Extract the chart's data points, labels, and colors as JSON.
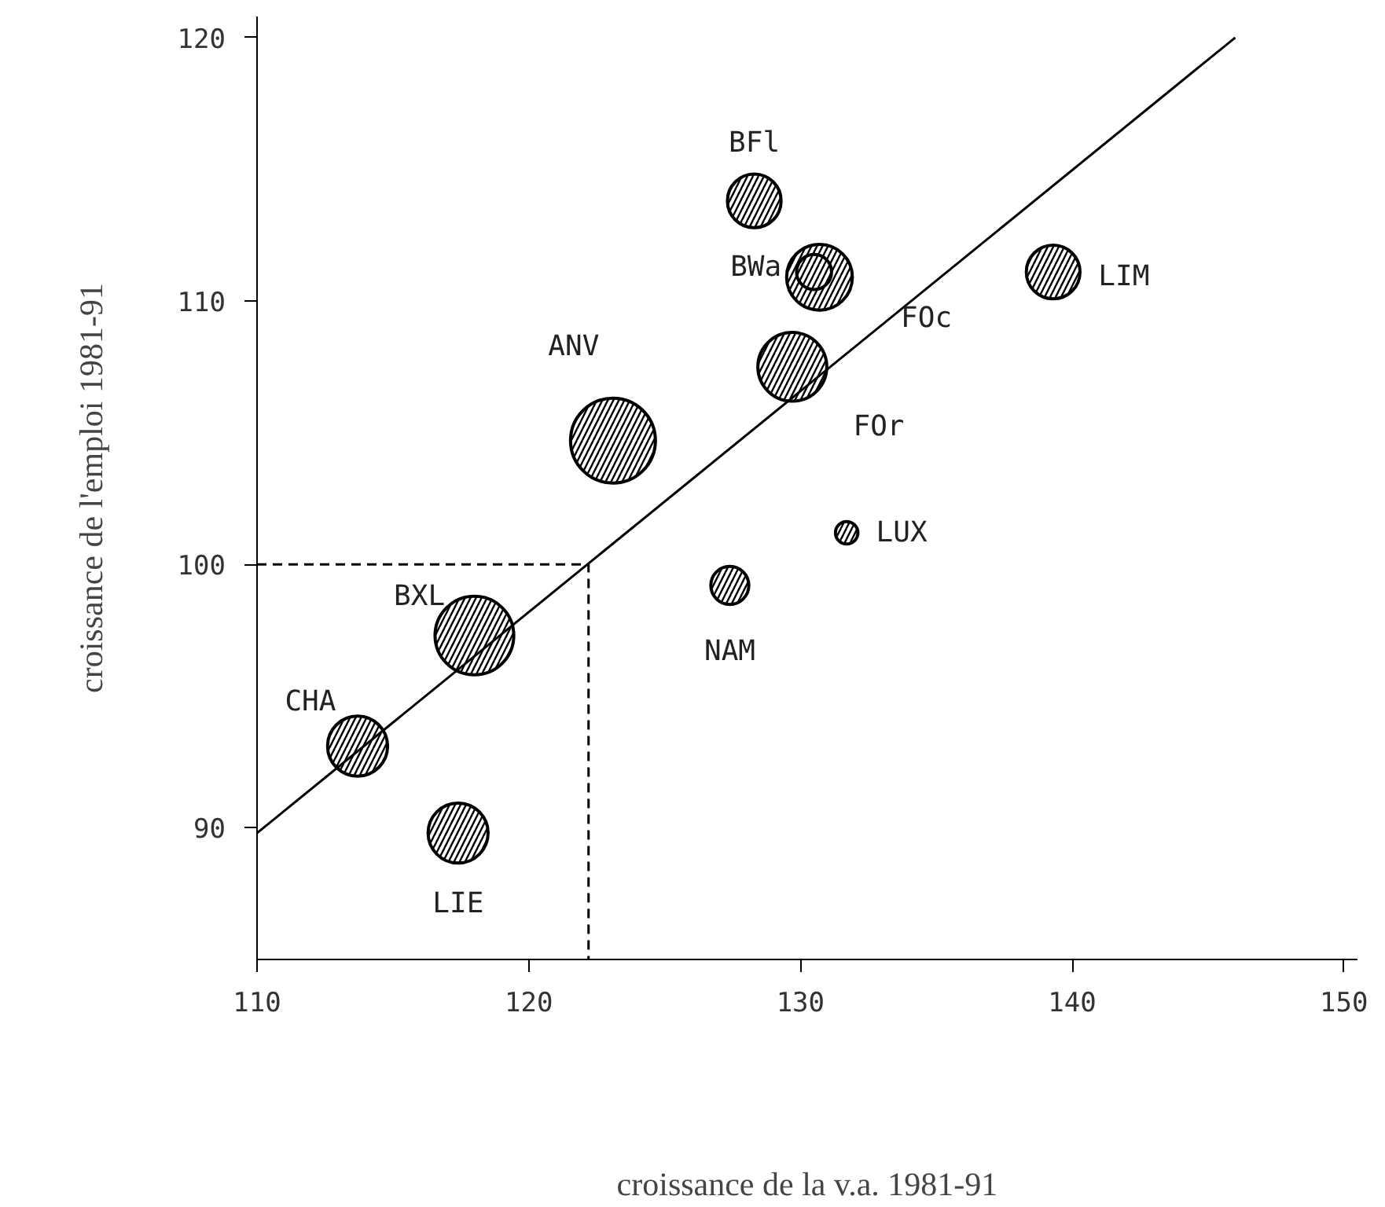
{
  "chart_data": {
    "type": "bubble",
    "xlabel": "croissance de la v.a. 1981-91",
    "ylabel": "croissance de l'emploi 1981-91",
    "xlim": [
      110,
      150.5
    ],
    "ylim": [
      85,
      120.8
    ],
    "xticks": [
      110,
      120,
      130,
      140,
      150
    ],
    "yticks": [
      90,
      100,
      110,
      120
    ],
    "grid": false,
    "series": [
      {
        "type": "bubble",
        "color": "#000000",
        "x": [
          128.3,
          130.7,
          130.5,
          129.7,
          123.1,
          139.3,
          131.7,
          127.4,
          118.0,
          113.7,
          117.4
        ],
        "values": [
          113.8,
          110.9,
          111.1,
          107.5,
          104.7,
          111.1,
          101.2,
          99.2,
          97.3,
          93.1,
          89.8
        ],
        "sizes": [
          0.4,
          0.6,
          0.17,
          0.66,
          1,
          0.4,
          0.07,
          0.2,
          0.86,
          0.5,
          0.5
        ]
      },
      {
        "type": "line",
        "color": "#000000",
        "line_style": "solid",
        "marker": "none",
        "x": [
          110,
          146
        ],
        "values": [
          89.8,
          120
        ]
      },
      {
        "type": "line",
        "color": "#000000",
        "line_style": "dashed",
        "marker": "none",
        "x": [
          110,
          122.2,
          122.2
        ],
        "values": [
          100,
          100,
          85
        ]
      }
    ],
    "annotations": [
      {
        "text": "BFl",
        "x": 128.3,
        "y": 113.8
      },
      {
        "text": "BWa",
        "x": 130.5,
        "y": 111.1
      },
      {
        "text": "FOc",
        "x": 130.7,
        "y": 110.9
      },
      {
        "text": "FOr",
        "x": 129.7,
        "y": 107.5
      },
      {
        "text": "ANV",
        "x": 123.1,
        "y": 104.7
      },
      {
        "text": "LIM",
        "x": 139.3,
        "y": 111.1
      },
      {
        "text": "LUX",
        "x": 131.7,
        "y": 101.2
      },
      {
        "text": "NAM",
        "x": 127.4,
        "y": 99.2
      },
      {
        "text": "BXL",
        "x": 118.0,
        "y": 97.3
      },
      {
        "text": "CHA",
        "x": 113.7,
        "y": 93.1
      },
      {
        "text": "LIE",
        "x": 117.4,
        "y": 89.8
      }
    ]
  }
}
